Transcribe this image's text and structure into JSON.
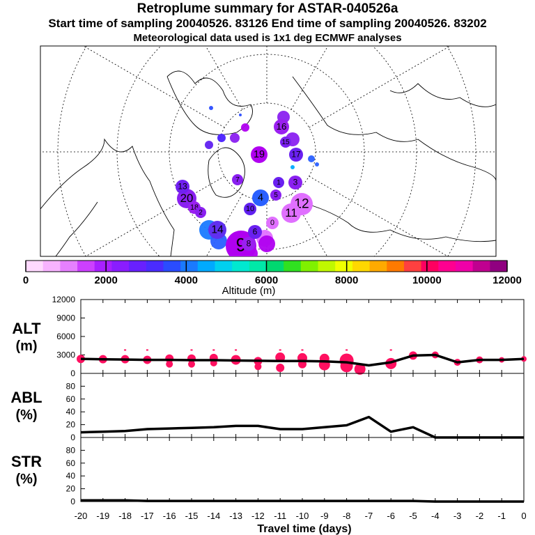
{
  "header": {
    "title": "Retroplume summary for ASTAR-040526a",
    "subtitle": "Start time of sampling 20040526. 83126     End time of sampling 20040526. 83202",
    "subtitle2": "Meteorological data used is 1x1 deg ECMWF analyses"
  },
  "colorbar": {
    "colors": [
      "#ffd9ff",
      "#f7b3ff",
      "#e680ff",
      "#cc40ff",
      "#a820ff",
      "#8a1dff",
      "#6820ff",
      "#4a2cff",
      "#2a4cff",
      "#1a7aff",
      "#00aaff",
      "#00d0f0",
      "#00e8d0",
      "#00e8a8",
      "#00d870",
      "#30e020",
      "#80f000",
      "#c0f800",
      "#f0ff00",
      "#ffd800",
      "#ffaa00",
      "#ff7a00",
      "#ff4040",
      "#ff0060",
      "#ff0090",
      "#f000a8",
      "#c00090",
      "#900080"
    ],
    "tick_labels": [
      "0",
      "2000",
      "4000",
      "6000",
      "8000",
      "10000",
      "12000"
    ],
    "label": "Altitude (m)"
  },
  "map": {
    "clusters": [
      {
        "label": "9",
        "color": "#b000f0",
        "r": 22
      },
      {
        "label": "12",
        "color": "#e070ff",
        "r": 16
      },
      {
        "label": "11",
        "color": "#e070ff",
        "r": 14
      },
      {
        "label": "20",
        "color": "#8a20f0",
        "r": 14
      },
      {
        "label": "19",
        "color": "#b000f0",
        "r": 12
      },
      {
        "label": "14",
        "color": "#6030f0",
        "r": 13
      },
      {
        "label": "16",
        "color": "#9a20f0",
        "r": 11
      },
      {
        "label": "8",
        "color": "#9a20f0",
        "r": 10
      },
      {
        "label": "4",
        "color": "#2a60ff",
        "r": 12
      },
      {
        "label": "17",
        "color": "#6a20f0",
        "r": 10
      },
      {
        "label": "13",
        "color": "#7020f0",
        "r": 10
      },
      {
        "label": "6",
        "color": "#6a20f0",
        "r": 10
      },
      {
        "label": "3",
        "color": "#8a20f0",
        "r": 10
      },
      {
        "label": "0",
        "color": "#e070ff",
        "r": 9
      },
      {
        "label": "10",
        "color": "#6020f0",
        "r": 9
      },
      {
        "label": "18",
        "color": "#9a20f0",
        "r": 9
      },
      {
        "label": "15",
        "color": "#7a20f0",
        "r": 8
      },
      {
        "label": "1",
        "color": "#6a20f0",
        "r": 8
      },
      {
        "label": "2",
        "color": "#8a20f0",
        "r": 8
      },
      {
        "label": "5",
        "color": "#8a20f0",
        "r": 8
      },
      {
        "label": "7",
        "color": "#8a20f0",
        "r": 8
      }
    ]
  },
  "panels": {
    "alt": {
      "label_line1": "ALT",
      "label_line2": "(m)",
      "ymax": 12000,
      "ticks": [
        "12000",
        "9000",
        "6000",
        "3000",
        "0"
      ]
    },
    "abl": {
      "label_line1": "ABL",
      "label_line2": "(%)",
      "ymax": 100,
      "ticks": [
        "80",
        "60",
        "40",
        "20",
        "0"
      ]
    },
    "str": {
      "label_line1": "STR",
      "label_line2": "(%)",
      "ymax": 100,
      "ticks": [
        "80",
        "60",
        "40",
        "20",
        "0"
      ]
    }
  },
  "chart_data": {
    "type": "line",
    "title": "Retroplume summary for ASTAR-040526a",
    "xlabel": "Travel time (days)",
    "x_tick_labels": [
      "-20",
      "-19",
      "-18",
      "-17",
      "-16",
      "-15",
      "-14",
      "-13",
      "-12",
      "-11",
      "-10",
      "-9",
      "-8",
      "-7",
      "-6",
      "-5",
      "-4",
      "-3",
      "-2",
      "-1",
      "0"
    ],
    "x": [
      -20,
      -19,
      -18,
      -17,
      -16,
      -15,
      -14,
      -13,
      -12,
      -11,
      -10,
      -9,
      -8,
      -7,
      -6,
      -5,
      -4,
      -3,
      -2,
      -1,
      0
    ],
    "xlim": [
      -20,
      0
    ],
    "series": [
      {
        "name": "ALT",
        "ylabel": "ALT (m)",
        "ylim": [
          0,
          12000
        ],
        "values": [
          2350,
          2300,
          2250,
          2200,
          2200,
          2150,
          2150,
          2100,
          2050,
          2000,
          2000,
          1950,
          1800,
          1300,
          1800,
          2900,
          3000,
          1800,
          2200,
          2200,
          2350
        ]
      },
      {
        "name": "ABL",
        "ylabel": "ABL (%)",
        "ylim": [
          0,
          100
        ],
        "values": [
          8,
          9,
          10,
          13,
          14,
          15,
          16,
          18,
          18,
          13,
          13,
          16,
          19,
          32,
          9,
          16,
          0,
          0,
          0,
          0,
          0
        ]
      },
      {
        "name": "STR",
        "ylabel": "STR (%)",
        "ylim": [
          0,
          100
        ],
        "values": [
          2,
          2,
          2,
          1,
          1,
          1,
          1,
          1,
          1,
          1,
          1,
          1,
          1,
          1,
          1,
          1,
          0,
          0,
          0,
          0,
          0
        ]
      }
    ],
    "alt_spread_markers": [
      {
        "x": -20,
        "alt": 2350,
        "size": 6
      },
      {
        "x": -19,
        "alt": 2300,
        "size": 6
      },
      {
        "x": -18,
        "alt": 2300,
        "size": 6
      },
      {
        "x": -17,
        "alt": 2200,
        "size": 6
      },
      {
        "x": -16,
        "alt": 2400,
        "size": 6
      },
      {
        "x": -16,
        "alt": 1500,
        "size": 5
      },
      {
        "x": -15,
        "alt": 2400,
        "size": 6
      },
      {
        "x": -15,
        "alt": 1500,
        "size": 5
      },
      {
        "x": -14,
        "alt": 2500,
        "size": 6
      },
      {
        "x": -14,
        "alt": 1700,
        "size": 5
      },
      {
        "x": -13,
        "alt": 2200,
        "size": 7
      },
      {
        "x": -12,
        "alt": 2000,
        "size": 6
      },
      {
        "x": -12,
        "alt": 1100,
        "size": 5
      },
      {
        "x": -11,
        "alt": 2600,
        "size": 7
      },
      {
        "x": -11,
        "alt": 900,
        "size": 6
      },
      {
        "x": -10,
        "alt": 2500,
        "size": 7
      },
      {
        "x": -10,
        "alt": 1500,
        "size": 6
      },
      {
        "x": -9,
        "alt": 2400,
        "size": 7
      },
      {
        "x": -9,
        "alt": 1400,
        "size": 8
      },
      {
        "x": -8,
        "alt": 2100,
        "size": 10
      },
      {
        "x": -8,
        "alt": 1200,
        "size": 9
      },
      {
        "x": -7.4,
        "alt": 700,
        "size": 8
      },
      {
        "x": -6,
        "alt": 1600,
        "size": 8
      },
      {
        "x": -5,
        "alt": 2900,
        "size": 6
      },
      {
        "x": -4,
        "alt": 3000,
        "size": 5
      },
      {
        "x": -3,
        "alt": 1800,
        "size": 5
      },
      {
        "x": -2,
        "alt": 2200,
        "size": 5
      },
      {
        "x": -1,
        "alt": 2200,
        "size": 4
      },
      {
        "x": 0,
        "alt": 2350,
        "size": 4
      }
    ]
  }
}
